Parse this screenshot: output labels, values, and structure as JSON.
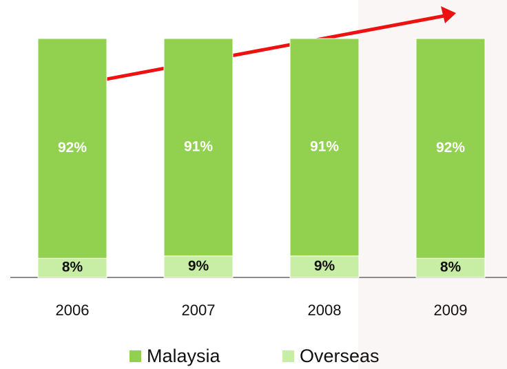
{
  "chart_data": {
    "type": "stacked_bar",
    "categories": [
      "2006",
      "2007",
      "2008",
      "2009"
    ],
    "series": [
      {
        "name": "Malaysia",
        "color": "#92d050",
        "values": [
          92,
          91,
          91,
          92
        ]
      },
      {
        "name": "Overseas",
        "color": "#c8eea6",
        "values": [
          8,
          9,
          9,
          8
        ]
      }
    ]
  }
}
